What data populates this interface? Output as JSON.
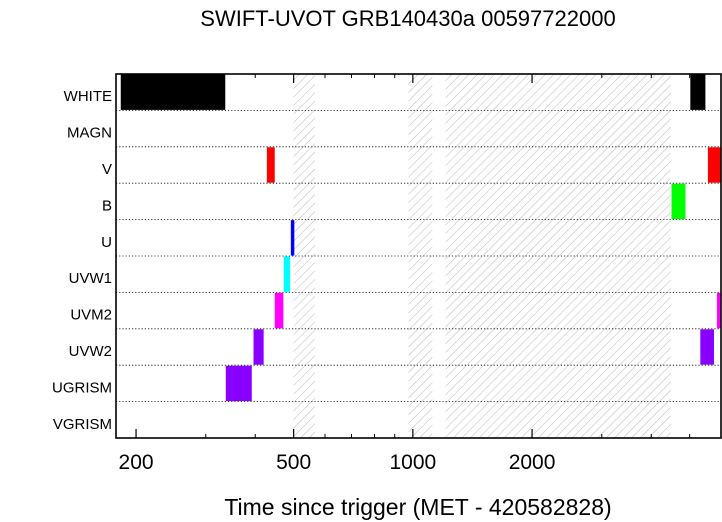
{
  "chart_data": {
    "type": "bar",
    "title": "SWIFT-UVOT GRB140430a 00597722000",
    "xlabel": "Time since trigger (MET - 420582828)",
    "ylabel": "",
    "x_scale": "log",
    "xlim": [
      178,
      6000
    ],
    "x_ticks": [
      {
        "value": 200,
        "label": "200"
      },
      {
        "value": 500,
        "label": "500"
      },
      {
        "value": 1000,
        "label": "1000"
      },
      {
        "value": 2000,
        "label": "2000"
      }
    ],
    "categories": [
      "WHITE",
      "MAGN",
      "V",
      "B",
      "U",
      "UVW1",
      "UVM2",
      "UVW2",
      "UGRISM",
      "VGRISM"
    ],
    "grid": "dotted horizontal separators between filter rows",
    "colors": {
      "WHITE": "#000000",
      "V": "#ff0000",
      "B": "#00ff00",
      "U": "#0000ff",
      "UVW1": "#00ffff",
      "UVM2": "#ff00ff",
      "UVW2": "#8800ff",
      "UGRISM": "#8800ff"
    },
    "exposures": [
      {
        "filter": "WHITE",
        "start": 183,
        "end": 336
      },
      {
        "filter": "WHITE",
        "start": 5020,
        "end": 5480
      },
      {
        "filter": "V",
        "start": 428,
        "end": 448
      },
      {
        "filter": "V",
        "start": 5560,
        "end": 6000
      },
      {
        "filter": "B",
        "start": 4500,
        "end": 4880
      },
      {
        "filter": "U",
        "start": 492,
        "end": 502
      },
      {
        "filter": "UVW1",
        "start": 472,
        "end": 490
      },
      {
        "filter": "UVM2",
        "start": 448,
        "end": 471
      },
      {
        "filter": "UVM2",
        "start": 5860,
        "end": 6000
      },
      {
        "filter": "UVW2",
        "start": 396,
        "end": 420
      },
      {
        "filter": "UVW2",
        "start": 5320,
        "end": 5760
      },
      {
        "filter": "UGRISM",
        "start": 337,
        "end": 392
      }
    ],
    "gaps": [
      {
        "start": 500,
        "end": 566
      },
      {
        "start": 975,
        "end": 1120
      },
      {
        "start": 1210,
        "end": 4480
      }
    ]
  }
}
